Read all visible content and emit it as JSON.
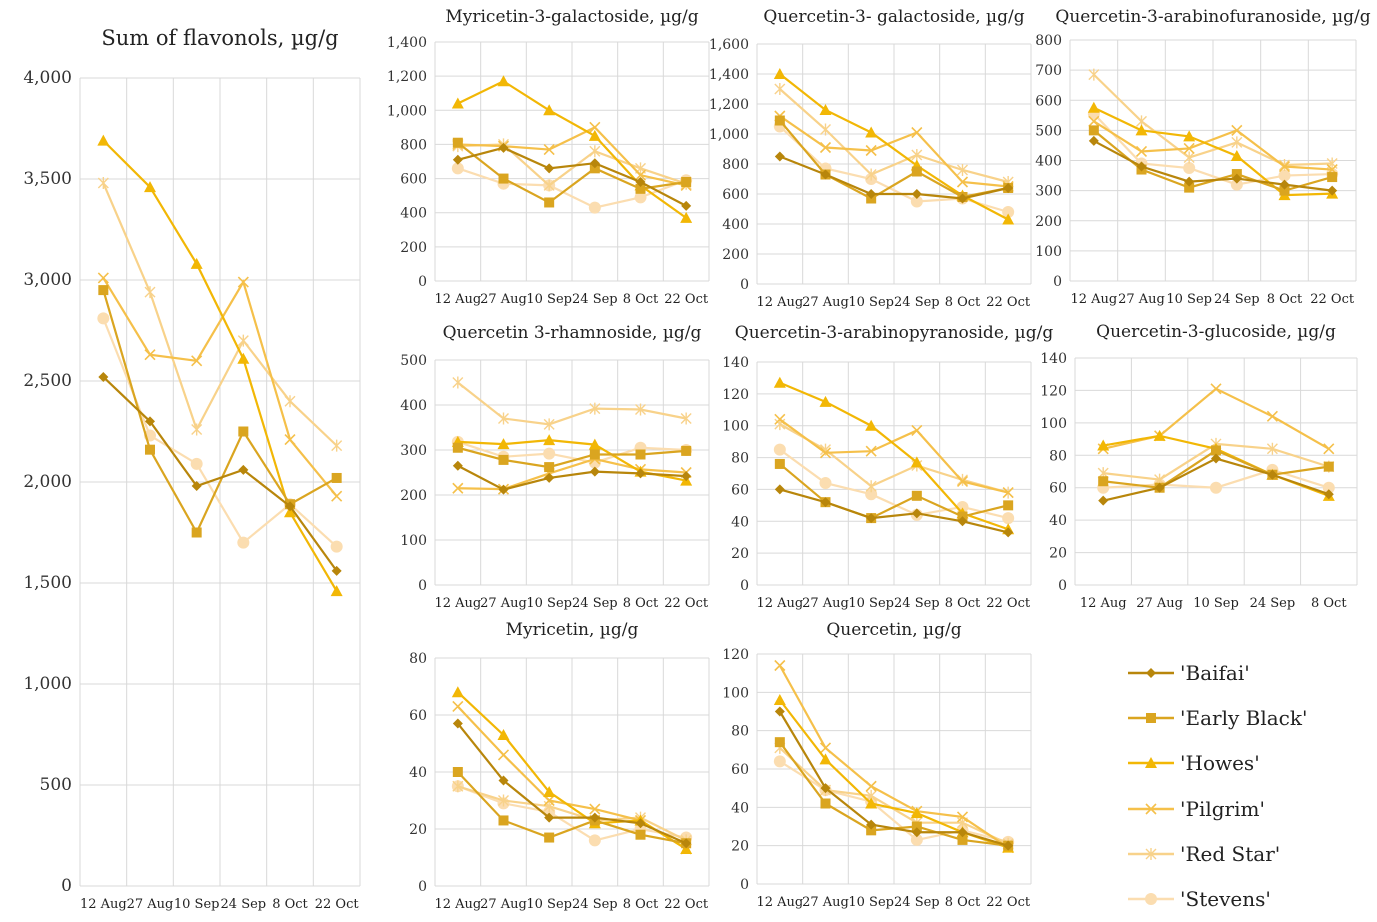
{
  "series_styles": [
    {
      "name": "'Baifai'",
      "color": "#B8860B",
      "marker": "diamond"
    },
    {
      "name": "'Early Black'",
      "color": "#DAA520",
      "marker": "square"
    },
    {
      "name": "'Howes'",
      "color": "#F2B705",
      "marker": "triangle"
    },
    {
      "name": "'Pilgrim'",
      "color": "#F5C04A",
      "marker": "x"
    },
    {
      "name": "'Red Star'",
      "color": "#F8D28A",
      "marker": "star"
    },
    {
      "name": "'Stevens'",
      "color": "#FBDDB0",
      "marker": "circle"
    }
  ],
  "chart_data": [
    {
      "type": "line",
      "title": "Sum of flavonols, µg/g",
      "categories": [
        "12 Aug",
        "27 Aug",
        "10 Sep",
        "24 Sep",
        "8 Oct",
        "22 Oct"
      ],
      "ylim": [
        0,
        4000
      ],
      "yticks": [
        "0",
        "500",
        "1,000",
        "1,500",
        "2,000",
        "2,500",
        "3,000",
        "3,500",
        "4,000"
      ],
      "grid": true,
      "series": [
        {
          "name": "'Baifai'",
          "values": [
            2520,
            2300,
            1980,
            2060,
            1880,
            1560
          ]
        },
        {
          "name": "'Early Black'",
          "values": [
            2950,
            2160,
            1750,
            2250,
            1890,
            2020
          ]
        },
        {
          "name": "'Howes'",
          "values": [
            3690,
            3460,
            3080,
            2610,
            1850,
            1460
          ]
        },
        {
          "name": "'Pilgrim'",
          "values": [
            3010,
            2630,
            2600,
            2990,
            2210,
            1930
          ]
        },
        {
          "name": "'Red Star'",
          "values": [
            3480,
            2940,
            2260,
            2700,
            2400,
            2180
          ]
        },
        {
          "name": "'Stevens'",
          "values": [
            2810,
            2230,
            2090,
            1700,
            1890,
            1680
          ]
        }
      ]
    },
    {
      "type": "line",
      "title": "Myricetin-3-galactoside, µg/g",
      "categories": [
        "12 Aug",
        "27 Aug",
        "10 Sep",
        "24 Sep",
        "8 Oct",
        "22 Oct"
      ],
      "ylim": [
        0,
        1400
      ],
      "yticks": [
        "0",
        "200",
        "400",
        "600",
        "800",
        "1,000",
        "1,200",
        "1,400"
      ],
      "grid": true,
      "series": [
        {
          "name": "'Baifai'",
          "values": [
            710,
            780,
            660,
            690,
            580,
            440
          ]
        },
        {
          "name": "'Early Black'",
          "values": [
            810,
            600,
            460,
            660,
            540,
            580
          ]
        },
        {
          "name": "'Howes'",
          "values": [
            1040,
            1170,
            1000,
            850,
            560,
            370
          ]
        },
        {
          "name": "'Pilgrim'",
          "values": [
            800,
            790,
            770,
            900,
            620,
            560
          ]
        },
        {
          "name": "'Red Star'",
          "values": [
            790,
            800,
            560,
            760,
            660,
            570
          ]
        },
        {
          "name": "'Stevens'",
          "values": [
            660,
            570,
            560,
            430,
            490,
            590
          ]
        }
      ]
    },
    {
      "type": "line",
      "title": "Quercetin-3- galactoside, µg/g",
      "categories": [
        "12 Aug",
        "27 Aug",
        "10 Sep",
        "24 Sep",
        "8 Oct",
        "22 Oct"
      ],
      "ylim": [
        0,
        1600
      ],
      "yticks": [
        "0",
        "200",
        "400",
        "600",
        "800",
        "1,000",
        "1,200",
        "1,400",
        "1,600"
      ],
      "grid": true,
      "series": [
        {
          "name": "'Baifai'",
          "values": [
            850,
            730,
            600,
            600,
            570,
            640
          ]
        },
        {
          "name": "'Early Black'",
          "values": [
            1090,
            730,
            570,
            750,
            580,
            640
          ]
        },
        {
          "name": "'Howes'",
          "values": [
            1400,
            1160,
            1010,
            790,
            590,
            430
          ]
        },
        {
          "name": "'Pilgrim'",
          "values": [
            1120,
            910,
            890,
            1010,
            680,
            650
          ]
        },
        {
          "name": "'Red Star'",
          "values": [
            1300,
            1030,
            730,
            860,
            760,
            680
          ]
        },
        {
          "name": "'Stevens'",
          "values": [
            1050,
            770,
            700,
            550,
            570,
            480
          ]
        }
      ]
    },
    {
      "type": "line",
      "title": "Quercetin-3-arabinofuranoside, µg/g",
      "categories": [
        "12 Aug",
        "27 Aug",
        "10 Sep",
        "24 Sep",
        "8 Oct",
        "22 Oct"
      ],
      "ylim": [
        0,
        800
      ],
      "yticks": [
        "0",
        "100",
        "200",
        "300",
        "400",
        "500",
        "600",
        "700",
        "800"
      ],
      "grid": true,
      "series": [
        {
          "name": "'Baifai'",
          "values": [
            465,
            380,
            330,
            340,
            320,
            300
          ]
        },
        {
          "name": "'Early Black'",
          "values": [
            500,
            370,
            310,
            355,
            300,
            345
          ]
        },
        {
          "name": "'Howes'",
          "values": [
            575,
            500,
            480,
            415,
            285,
            290
          ]
        },
        {
          "name": "'Pilgrim'",
          "values": [
            530,
            430,
            440,
            500,
            380,
            370
          ]
        },
        {
          "name": "'Red Star'",
          "values": [
            685,
            530,
            410,
            460,
            385,
            390
          ]
        },
        {
          "name": "'Stevens'",
          "values": [
            555,
            390,
            375,
            320,
            350,
            355
          ]
        }
      ]
    },
    {
      "type": "line",
      "title": "Quercetin 3-rhamnoside, µg/g",
      "categories": [
        "12 Aug",
        "27 Aug",
        "10 Sep",
        "24 Sep",
        "8 Oct",
        "22 Oct"
      ],
      "ylim": [
        0,
        500
      ],
      "yticks": [
        "0",
        "100",
        "200",
        "300",
        "400",
        "500"
      ],
      "grid": true,
      "series": [
        {
          "name": "'Baifai'",
          "values": [
            265,
            212,
            238,
            252,
            248,
            242
          ]
        },
        {
          "name": "'Early Black'",
          "values": [
            305,
            278,
            262,
            290,
            290,
            298
          ]
        },
        {
          "name": "'Howes'",
          "values": [
            318,
            313,
            322,
            312,
            252,
            232
          ]
        },
        {
          "name": "'Pilgrim'",
          "values": [
            215,
            213,
            248,
            280,
            257,
            250
          ]
        },
        {
          "name": "'Red Star'",
          "values": [
            450,
            370,
            357,
            392,
            390,
            370
          ]
        },
        {
          "name": "'Stevens'",
          "values": [
            318,
            285,
            292,
            272,
            305,
            300
          ]
        }
      ]
    },
    {
      "type": "line",
      "title": "Quercetin-3-arabinopyranoside, µg/g",
      "categories": [
        "12 Aug",
        "27 Aug",
        "10 Sep",
        "24 Sep",
        "8 Oct",
        "22 Oct"
      ],
      "ylim": [
        0,
        140
      ],
      "yticks": [
        "0",
        "20",
        "40",
        "60",
        "80",
        "100",
        "120",
        "140"
      ],
      "grid": true,
      "series": [
        {
          "name": "'Baifai'",
          "values": [
            60,
            52,
            42,
            45,
            40,
            33
          ]
        },
        {
          "name": "'Early Black'",
          "values": [
            76,
            52,
            42,
            56,
            43,
            50
          ]
        },
        {
          "name": "'Howes'",
          "values": [
            127,
            115,
            100,
            77,
            45,
            35
          ]
        },
        {
          "name": "'Pilgrim'",
          "values": [
            104,
            83,
            84,
            97,
            65,
            58
          ]
        },
        {
          "name": "'Red Star'",
          "values": [
            101,
            85,
            62,
            75,
            66,
            58
          ]
        },
        {
          "name": "'Stevens'",
          "values": [
            85,
            64,
            57,
            44,
            49,
            42
          ]
        }
      ]
    },
    {
      "type": "line",
      "title": "Quercetin-3-glucoside, µg/g",
      "categories": [
        "12 Aug",
        "27 Aug",
        "10 Sep",
        "24 Sep",
        "8 Oct"
      ],
      "ylim": [
        0,
        140
      ],
      "yticks": [
        "0",
        "20",
        "40",
        "60",
        "80",
        "100",
        "120",
        "140"
      ],
      "grid": true,
      "series": [
        {
          "name": "'Baifai'",
          "values": [
            52,
            60,
            78,
            68,
            56
          ]
        },
        {
          "name": "'Early Black'",
          "values": [
            64,
            60,
            83,
            68,
            73
          ]
        },
        {
          "name": "'Howes'",
          "values": [
            86,
            92,
            84,
            68,
            55
          ]
        },
        {
          "name": "'Pilgrim'",
          "values": [
            84,
            92,
            121,
            104,
            84
          ]
        },
        {
          "name": "'Red Star'",
          "values": [
            69,
            65,
            87,
            84,
            73
          ]
        },
        {
          "name": "'Stevens'",
          "values": [
            60,
            62,
            60,
            71,
            60
          ]
        }
      ]
    },
    {
      "type": "line",
      "title": "Myricetin, µg/g",
      "categories": [
        "12 Aug",
        "27 Aug",
        "10 Sep",
        "24 Sep",
        "8 Oct",
        "22 Oct"
      ],
      "ylim": [
        0,
        80
      ],
      "yticks": [
        "0",
        "20",
        "40",
        "60",
        "80"
      ],
      "grid": true,
      "series": [
        {
          "name": "'Baifai'",
          "values": [
            57,
            37,
            24,
            24,
            22,
            15
          ]
        },
        {
          "name": "'Early Black'",
          "values": [
            40,
            23,
            17,
            23,
            18,
            15
          ]
        },
        {
          "name": "'Howes'",
          "values": [
            68,
            53,
            33,
            22,
            23,
            13
          ]
        },
        {
          "name": "'Pilgrim'",
          "values": [
            63,
            46,
            30,
            27,
            23,
            13
          ]
        },
        {
          "name": "'Red Star'",
          "values": [
            35,
            30,
            28,
            23,
            24,
            16
          ]
        },
        {
          "name": "'Stevens'",
          "values": [
            35,
            29,
            26,
            16,
            20,
            17
          ]
        }
      ]
    },
    {
      "type": "line",
      "title": "Quercetin, µg/g",
      "categories": [
        "12 Aug",
        "27 Aug",
        "10 Sep",
        "24 Sep",
        "8 Oct",
        "22 Oct"
      ],
      "ylim": [
        0,
        120
      ],
      "yticks": [
        "0",
        "20",
        "40",
        "60",
        "80",
        "100",
        "120"
      ],
      "grid": true,
      "series": [
        {
          "name": "'Baifai'",
          "values": [
            90,
            50,
            31,
            27,
            27,
            20
          ]
        },
        {
          "name": "'Early Black'",
          "values": [
            74,
            42,
            28,
            30,
            23,
            20
          ]
        },
        {
          "name": "'Howes'",
          "values": [
            96,
            65,
            42,
            37,
            27,
            19
          ]
        },
        {
          "name": "'Pilgrim'",
          "values": [
            114,
            71,
            51,
            38,
            35,
            19
          ]
        },
        {
          "name": "'Red Star'",
          "values": [
            71,
            49,
            46,
            32,
            32,
            21
          ]
        },
        {
          "name": "'Stevens'",
          "values": [
            64,
            49,
            43,
            23,
            28,
            22
          ]
        }
      ]
    }
  ]
}
